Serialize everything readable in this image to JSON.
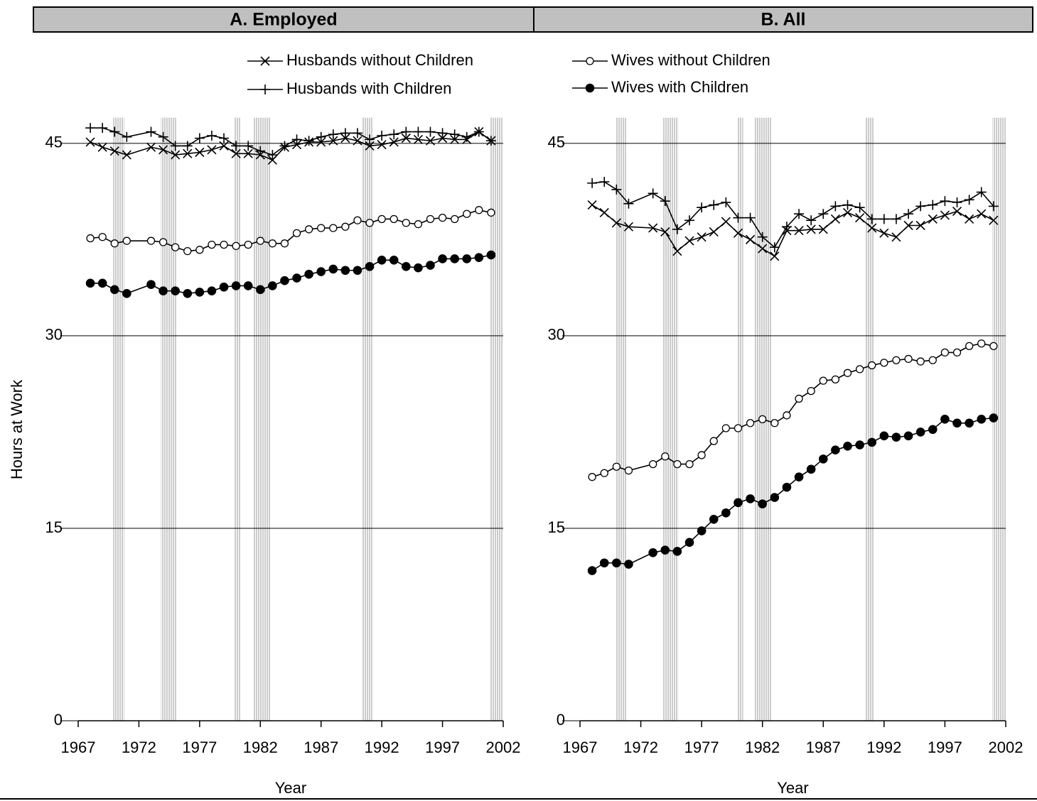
{
  "chart_data": [
    {
      "type": "line",
      "panel_title": "A. Employed",
      "y_label": "Hours at Work",
      "x_label": "Year",
      "x": [
        1968,
        1969,
        1970,
        1971,
        1973,
        1974,
        1975,
        1976,
        1977,
        1978,
        1979,
        1980,
        1981,
        1982,
        1983,
        1984,
        1985,
        1986,
        1987,
        1988,
        1989,
        1990,
        1991,
        1992,
        1993,
        1994,
        1995,
        1996,
        1997,
        1998,
        1999,
        2000,
        2001
      ],
      "xlim": [
        1967,
        2002
      ],
      "xticks": [
        1967,
        1972,
        1977,
        1982,
        1987,
        1992,
        1997,
        2002
      ],
      "ylim": [
        0,
        47
      ],
      "yticks": [
        0,
        15,
        30,
        45
      ],
      "grid": true,
      "recessions": [
        [
          1969.9,
          1970.8
        ],
        [
          1973.8,
          1975.1
        ],
        [
          1979.9,
          1980.4
        ],
        [
          1981.4,
          1982.8
        ],
        [
          1990.4,
          1991.2
        ],
        [
          2000.9,
          2002
        ]
      ],
      "series": [
        {
          "name": "Husbands without Children",
          "marker": "x",
          "color": "#000000",
          "values": [
            45.1,
            44.7,
            44.4,
            44.1,
            44.7,
            44.5,
            44.1,
            44.2,
            44.3,
            44.5,
            44.8,
            44.2,
            44.2,
            44.1,
            43.7,
            44.7,
            44.9,
            45.1,
            45.1,
            45.2,
            45.4,
            45.2,
            44.8,
            44.9,
            45.1,
            45.4,
            45.3,
            45.2,
            45.4,
            45.3,
            45.3,
            45.9,
            45.2
          ]
        },
        {
          "name": "Husbands with Children",
          "marker": "+",
          "color": "#000000",
          "values": [
            46.2,
            46.2,
            45.9,
            45.5,
            45.9,
            45.5,
            44.8,
            44.8,
            45.4,
            45.6,
            45.4,
            44.8,
            44.8,
            44.4,
            44.1,
            44.8,
            45.3,
            45.2,
            45.5,
            45.7,
            45.8,
            45.8,
            45.3,
            45.6,
            45.7,
            45.9,
            45.9,
            45.9,
            45.8,
            45.7,
            45.5,
            45.9,
            45.2
          ]
        },
        {
          "marker": "o",
          "color": "#000000",
          "values": [
            37.6,
            37.7,
            37.2,
            37.4,
            37.4,
            37.3,
            36.9,
            36.6,
            36.7,
            37.1,
            37.1,
            37.0,
            37.1,
            37.4,
            37.2,
            37.2,
            38.0,
            38.3,
            38.4,
            38.4,
            38.5,
            39.0,
            38.8,
            39.1,
            39.1,
            38.8,
            38.7,
            39.1,
            39.2,
            39.1,
            39.5,
            39.8,
            39.6
          ]
        },
        {
          "marker": "filled-o",
          "color": "#000000",
          "values": [
            34.1,
            34.1,
            33.6,
            33.3,
            34.0,
            33.5,
            33.5,
            33.3,
            33.4,
            33.5,
            33.8,
            33.9,
            33.9,
            33.6,
            33.9,
            34.3,
            34.5,
            34.8,
            35.0,
            35.2,
            35.1,
            35.1,
            35.4,
            35.9,
            35.9,
            35.4,
            35.3,
            35.5,
            36.0,
            36.0,
            36.0,
            36.1,
            36.3
          ]
        }
      ]
    },
    {
      "type": "line",
      "panel_title": "B. All",
      "x_label": "Year",
      "x": [
        1968,
        1969,
        1970,
        1971,
        1973,
        1974,
        1975,
        1976,
        1977,
        1978,
        1979,
        1980,
        1981,
        1982,
        1983,
        1984,
        1985,
        1986,
        1987,
        1988,
        1989,
        1990,
        1991,
        1992,
        1993,
        1994,
        1995,
        1996,
        1997,
        1998,
        1999,
        2000,
        2001
      ],
      "xlim": [
        1967,
        2002
      ],
      "xticks": [
        1967,
        1972,
        1977,
        1982,
        1987,
        1992,
        1997,
        2002
      ],
      "ylim": [
        0,
        47
      ],
      "yticks": [
        0,
        15,
        30,
        45
      ],
      "grid": true,
      "recessions": [
        [
          1969.9,
          1970.8
        ],
        [
          1973.8,
          1975.1
        ],
        [
          1979.9,
          1980.4
        ],
        [
          1981.4,
          1982.8
        ],
        [
          1990.4,
          1991.2
        ],
        [
          2000.9,
          2002
        ]
      ],
      "series": [
        {
          "marker": "x",
          "color": "#000000",
          "values": [
            40.2,
            39.6,
            38.8,
            38.5,
            38.4,
            38.1,
            36.6,
            37.4,
            37.7,
            38.1,
            38.9,
            38.0,
            37.5,
            36.8,
            36.2,
            38.2,
            38.2,
            38.3,
            38.3,
            39.1,
            39.6,
            39.2,
            38.4,
            38.0,
            37.7,
            38.6,
            38.6,
            39.1,
            39.4,
            39.7,
            39.1,
            39.5,
            39.0
          ]
        },
        {
          "marker": "+",
          "color": "#000000",
          "values": [
            41.9,
            42.0,
            41.4,
            40.3,
            41.1,
            40.5,
            38.3,
            39.0,
            40.0,
            40.2,
            40.4,
            39.2,
            39.2,
            37.7,
            36.9,
            38.5,
            39.5,
            39.0,
            39.5,
            40.1,
            40.2,
            40.0,
            39.1,
            39.1,
            39.1,
            39.5,
            40.1,
            40.2,
            40.5,
            40.4,
            40.6,
            41.2,
            40.1
          ]
        },
        {
          "name": "Wives without Children",
          "marker": "o",
          "color": "#000000",
          "values": [
            19.0,
            19.3,
            19.8,
            19.5,
            20.0,
            20.6,
            20.0,
            20.0,
            20.7,
            21.8,
            22.8,
            22.8,
            23.2,
            23.5,
            23.2,
            23.8,
            25.1,
            25.7,
            26.5,
            26.6,
            27.1,
            27.4,
            27.7,
            27.9,
            28.1,
            28.2,
            28.0,
            28.1,
            28.7,
            28.7,
            29.2,
            29.4,
            29.2
          ]
        },
        {
          "name": "Wives with Children",
          "marker": "filled-o",
          "color": "#000000",
          "values": [
            11.7,
            12.3,
            12.3,
            12.2,
            13.1,
            13.3,
            13.2,
            13.9,
            14.8,
            15.7,
            16.2,
            17.0,
            17.3,
            16.9,
            17.4,
            18.2,
            19.0,
            19.6,
            20.4,
            21.1,
            21.4,
            21.5,
            21.7,
            22.2,
            22.1,
            22.2,
            22.5,
            22.7,
            23.5,
            23.2,
            23.2,
            23.5,
            23.6
          ]
        }
      ]
    }
  ]
}
